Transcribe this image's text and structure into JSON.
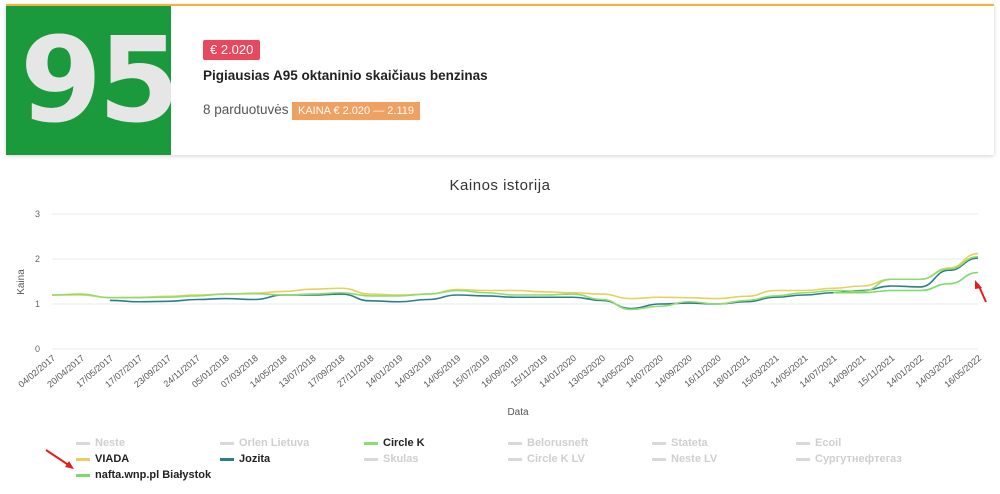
{
  "summary": {
    "badge_number": "95",
    "price": "€ 2.020",
    "title": "Pigiausias A95 oktaninio skaičiaus benzinas",
    "stores": "8 parduotuvės",
    "range": "KAINA € 2.020 — 2.119"
  },
  "colors": {
    "brand_green": "#1a9a3c",
    "price_tag": "#e8485e",
    "range_tag": "#f0a060",
    "accent_border": "#f0b43a"
  },
  "chart_data": {
    "type": "line",
    "title": "Kainos istorija",
    "xlabel": "Data",
    "ylabel": "Kaina",
    "ylim": [
      0,
      3
    ],
    "yticks": [
      0,
      1,
      2,
      3
    ],
    "grid": true,
    "legend_position": "bottom",
    "x_tick_labels": [
      "04/02/2017",
      "20/04/2017",
      "17/05/2017",
      "17/07/2017",
      "23/09/2017",
      "24/11/2017",
      "05/01/2018",
      "07/03/2018",
      "14/05/2018",
      "13/07/2018",
      "17/09/2018",
      "27/11/2018",
      "14/01/2019",
      "14/03/2019",
      "14/05/2019",
      "15/07/2019",
      "16/09/2019",
      "15/11/2019",
      "14/01/2020",
      "13/03/2020",
      "14/05/2020",
      "14/07/2020",
      "14/09/2020",
      "16/11/2020",
      "18/01/2021",
      "15/03/2021",
      "14/05/2021",
      "14/07/2021",
      "14/09/2021",
      "15/11/2021",
      "14/01/2022",
      "14/03/2022",
      "16/05/2022"
    ],
    "legend": [
      {
        "name": "Neste",
        "active": false,
        "color": "#d9d9d9"
      },
      {
        "name": "Orlen Lietuva",
        "active": false,
        "color": "#d9d9d9"
      },
      {
        "name": "Circle K",
        "active": true,
        "color": "#8fdc70"
      },
      {
        "name": "Belorusneft",
        "active": false,
        "color": "#d9d9d9"
      },
      {
        "name": "Stateta",
        "active": false,
        "color": "#d9d9d9"
      },
      {
        "name": "Ecoil",
        "active": false,
        "color": "#d9d9d9"
      },
      {
        "name": "VIADA",
        "active": true,
        "color": "#e8d060"
      },
      {
        "name": "Jozita",
        "active": true,
        "color": "#2a7f8a"
      },
      {
        "name": "Skulas",
        "active": false,
        "color": "#d9d9d9"
      },
      {
        "name": "Circle K LV",
        "active": false,
        "color": "#d9d9d9"
      },
      {
        "name": "Neste LV",
        "active": false,
        "color": "#d9d9d9"
      },
      {
        "name": "Сургутнефтегаз",
        "active": false,
        "color": "#d9d9d9"
      },
      {
        "name": "nafta.wnp.pl Białystok",
        "active": true,
        "color": "#7fd86a"
      }
    ],
    "series": [
      {
        "name": "VIADA",
        "color": "#e8d060",
        "values": [
          1.2,
          1.2,
          1.14,
          1.15,
          1.17,
          1.2,
          1.22,
          1.24,
          1.28,
          1.33,
          1.35,
          1.22,
          1.2,
          1.22,
          1.32,
          1.3,
          1.3,
          1.27,
          1.25,
          1.22,
          1.12,
          1.15,
          1.14,
          1.12,
          1.17,
          1.3,
          1.3,
          1.35,
          1.4,
          1.55,
          1.55,
          1.8,
          2.12
        ]
      },
      {
        "name": "Jozita",
        "color": "#2a7f8a",
        "values": [
          null,
          null,
          1.08,
          1.05,
          1.06,
          1.1,
          1.12,
          1.1,
          1.2,
          1.2,
          1.22,
          1.07,
          1.05,
          1.1,
          1.2,
          1.18,
          1.15,
          1.15,
          1.15,
          1.08,
          0.9,
          1.0,
          1.02,
          1.0,
          1.05,
          1.15,
          1.2,
          1.25,
          1.3,
          1.4,
          1.38,
          1.75,
          2.02
        ]
      },
      {
        "name": "Circle K",
        "color": "#8fdc70",
        "values": [
          1.2,
          1.22,
          1.14,
          1.14,
          1.15,
          1.18,
          1.22,
          1.23,
          1.2,
          1.22,
          1.25,
          1.18,
          1.18,
          1.22,
          1.3,
          1.25,
          1.2,
          1.2,
          1.22,
          1.1,
          0.88,
          0.95,
          1.05,
          1.0,
          1.08,
          1.18,
          1.25,
          1.3,
          1.28,
          1.55,
          1.55,
          1.78,
          2.05
        ]
      },
      {
        "name": "nafta.wnp.pl Białystok",
        "color": "#7fd86a",
        "values": [
          null,
          null,
          null,
          null,
          null,
          null,
          null,
          null,
          null,
          null,
          null,
          null,
          null,
          null,
          null,
          null,
          null,
          null,
          null,
          null,
          null,
          null,
          null,
          null,
          null,
          null,
          null,
          1.25,
          1.25,
          1.3,
          1.3,
          1.45,
          1.7
        ]
      }
    ]
  }
}
